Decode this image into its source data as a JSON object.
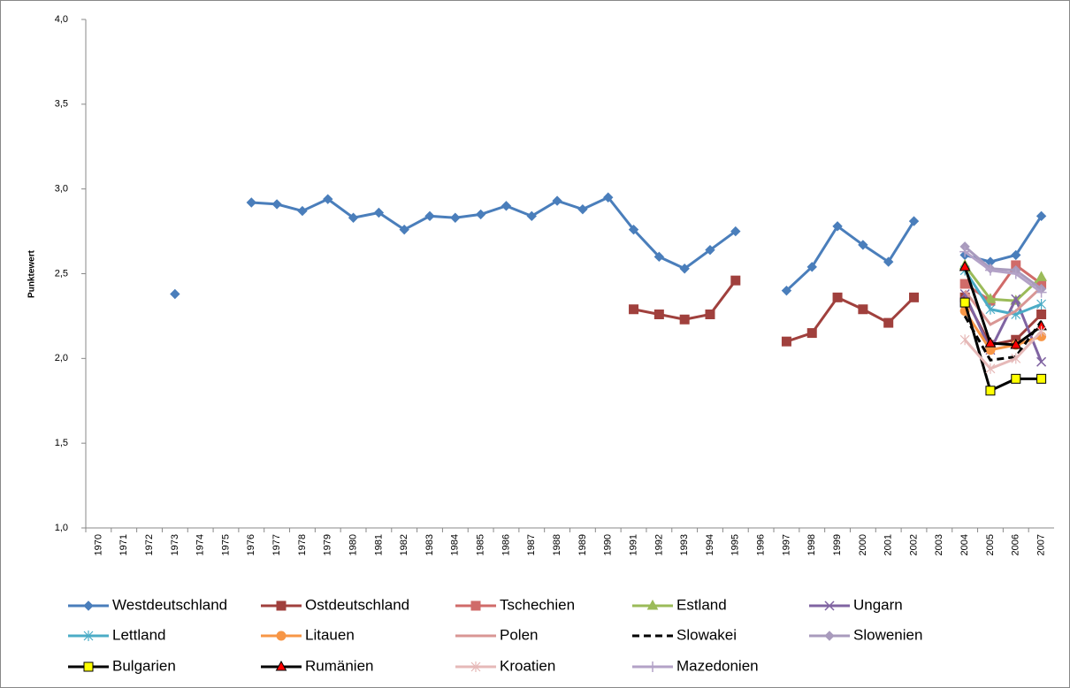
{
  "chart_data": {
    "type": "line",
    "y_label": "Punktewert",
    "categories": [
      "1970",
      "1971",
      "1972",
      "1973",
      "1974",
      "1975",
      "1976",
      "1977",
      "1978",
      "1979",
      "1980",
      "1981",
      "1982",
      "1983",
      "1984",
      "1985",
      "1986",
      "1987",
      "1988",
      "1989",
      "1990",
      "1991",
      "1992",
      "1993",
      "1994",
      "1995",
      "1996",
      "1997",
      "1998",
      "1999",
      "2000",
      "2001",
      "2002",
      "2003",
      "2004",
      "2005",
      "2006",
      "2007"
    ],
    "ylim": [
      1,
      4
    ],
    "yticks": [
      {
        "value": 1,
        "label": "1,0"
      },
      {
        "value": 1.5,
        "label": "1,5"
      },
      {
        "value": 2,
        "label": "2,0"
      },
      {
        "value": 2.5,
        "label": "2,5"
      },
      {
        "value": 3,
        "label": "3,0"
      },
      {
        "value": 3.5,
        "label": "3,5"
      },
      {
        "value": 4,
        "label": "4,0"
      }
    ],
    "grid": false,
    "legend": "bottom",
    "series": [
      {
        "name": "Westdeutschland",
        "color": "#4a7ebb",
        "marker": "diamond",
        "marker_fill": "#4a7ebb",
        "values": [
          null,
          null,
          null,
          2.38,
          null,
          null,
          2.92,
          2.91,
          2.87,
          2.94,
          2.83,
          2.86,
          2.76,
          2.84,
          2.83,
          2.85,
          2.9,
          2.84,
          2.93,
          2.88,
          2.95,
          2.76,
          2.6,
          2.53,
          2.64,
          2.75,
          null,
          2.4,
          2.54,
          2.78,
          2.67,
          2.57,
          2.81,
          null,
          2.61,
          2.57,
          2.61,
          2.84
        ]
      },
      {
        "name": "Ostdeutschland",
        "color": "#a0403d",
        "marker": "square",
        "marker_fill": "#a0403d",
        "values": [
          null,
          null,
          null,
          null,
          null,
          null,
          null,
          null,
          null,
          null,
          null,
          null,
          null,
          null,
          null,
          null,
          null,
          null,
          null,
          null,
          null,
          2.29,
          2.26,
          2.23,
          2.26,
          2.46,
          null,
          2.1,
          2.15,
          2.36,
          2.29,
          2.21,
          2.36,
          null,
          2.36,
          2.08,
          2.11,
          2.26
        ]
      },
      {
        "name": "Tschechien",
        "color": "#d06b69",
        "marker": "square",
        "marker_fill": "#d06b69",
        "values": [
          null,
          null,
          null,
          null,
          null,
          null,
          null,
          null,
          null,
          null,
          null,
          null,
          null,
          null,
          null,
          null,
          null,
          null,
          null,
          null,
          null,
          null,
          null,
          null,
          null,
          null,
          null,
          null,
          null,
          null,
          null,
          null,
          null,
          null,
          2.44,
          2.34,
          2.55,
          2.44
        ]
      },
      {
        "name": "Estland",
        "color": "#9bbb59",
        "marker": "triangle",
        "marker_fill": "#9bbb59",
        "values": [
          null,
          null,
          null,
          null,
          null,
          null,
          null,
          null,
          null,
          null,
          null,
          null,
          null,
          null,
          null,
          null,
          null,
          null,
          null,
          null,
          null,
          null,
          null,
          null,
          null,
          null,
          null,
          null,
          null,
          null,
          null,
          null,
          null,
          null,
          2.55,
          2.35,
          2.34,
          2.48
        ]
      },
      {
        "name": "Ungarn",
        "color": "#8064a2",
        "marker": "x",
        "marker_fill": "#8064a2",
        "values": [
          null,
          null,
          null,
          null,
          null,
          null,
          null,
          null,
          null,
          null,
          null,
          null,
          null,
          null,
          null,
          null,
          null,
          null,
          null,
          null,
          null,
          null,
          null,
          null,
          null,
          null,
          null,
          null,
          null,
          null,
          null,
          null,
          null,
          null,
          2.38,
          2.05,
          2.35,
          1.98
        ]
      },
      {
        "name": "Lettland",
        "color": "#4bacc6",
        "marker": "asterisk",
        "marker_fill": "#4bacc6",
        "values": [
          null,
          null,
          null,
          null,
          null,
          null,
          null,
          null,
          null,
          null,
          null,
          null,
          null,
          null,
          null,
          null,
          null,
          null,
          null,
          null,
          null,
          null,
          null,
          null,
          null,
          null,
          null,
          null,
          null,
          null,
          null,
          null,
          null,
          null,
          2.52,
          2.29,
          2.26,
          2.32
        ]
      },
      {
        "name": "Litauen",
        "color": "#f79646",
        "marker": "circle",
        "marker_fill": "#f79646",
        "values": [
          null,
          null,
          null,
          null,
          null,
          null,
          null,
          null,
          null,
          null,
          null,
          null,
          null,
          null,
          null,
          null,
          null,
          null,
          null,
          null,
          null,
          null,
          null,
          null,
          null,
          null,
          null,
          null,
          null,
          null,
          null,
          null,
          null,
          null,
          2.28,
          2.05,
          2.08,
          2.13
        ]
      },
      {
        "name": "Polen",
        "color": "#d99694",
        "marker": "none",
        "marker_fill": "#d99694",
        "values": [
          null,
          null,
          null,
          null,
          null,
          null,
          null,
          null,
          null,
          null,
          null,
          null,
          null,
          null,
          null,
          null,
          null,
          null,
          null,
          null,
          null,
          null,
          null,
          null,
          null,
          null,
          null,
          null,
          null,
          null,
          null,
          null,
          null,
          null,
          2.4,
          2.2,
          2.28,
          2.42
        ]
      },
      {
        "name": "Slowakei",
        "color": "#000000",
        "marker": "none",
        "marker_fill": "#000000",
        "dash": true,
        "values": [
          null,
          null,
          null,
          null,
          null,
          null,
          null,
          null,
          null,
          null,
          null,
          null,
          null,
          null,
          null,
          null,
          null,
          null,
          null,
          null,
          null,
          null,
          null,
          null,
          null,
          null,
          null,
          null,
          null,
          null,
          null,
          null,
          null,
          null,
          2.25,
          1.99,
          2.01,
          2.22
        ]
      },
      {
        "name": "Slowenien",
        "color": "#a99bbd",
        "marker": "diamond",
        "marker_fill": "#a99bbd",
        "values": [
          null,
          null,
          null,
          null,
          null,
          null,
          null,
          null,
          null,
          null,
          null,
          null,
          null,
          null,
          null,
          null,
          null,
          null,
          null,
          null,
          null,
          null,
          null,
          null,
          null,
          null,
          null,
          null,
          null,
          null,
          null,
          null,
          null,
          null,
          2.66,
          2.53,
          2.52,
          2.41
        ]
      },
      {
        "name": "Bulgarien",
        "color": "#000000",
        "marker": "square",
        "marker_fill": "#ffff00",
        "values": [
          null,
          null,
          null,
          null,
          null,
          null,
          null,
          null,
          null,
          null,
          null,
          null,
          null,
          null,
          null,
          null,
          null,
          null,
          null,
          null,
          null,
          null,
          null,
          null,
          null,
          null,
          null,
          null,
          null,
          null,
          null,
          null,
          null,
          null,
          2.33,
          1.81,
          1.88,
          1.88
        ]
      },
      {
        "name": "Rumänien",
        "color": "#000000",
        "marker": "triangle",
        "marker_fill": "#ff0000",
        "values": [
          null,
          null,
          null,
          null,
          null,
          null,
          null,
          null,
          null,
          null,
          null,
          null,
          null,
          null,
          null,
          null,
          null,
          null,
          null,
          null,
          null,
          null,
          null,
          null,
          null,
          null,
          null,
          null,
          null,
          null,
          null,
          null,
          null,
          null,
          2.54,
          2.09,
          2.08,
          2.19
        ]
      },
      {
        "name": "Kroatien",
        "color": "#e6b9b8",
        "marker": "asterisk",
        "marker_fill": "#e6b9b8",
        "values": [
          null,
          null,
          null,
          null,
          null,
          null,
          null,
          null,
          null,
          null,
          null,
          null,
          null,
          null,
          null,
          null,
          null,
          null,
          null,
          null,
          null,
          null,
          null,
          null,
          null,
          null,
          null,
          null,
          null,
          null,
          null,
          null,
          null,
          null,
          2.11,
          1.94,
          2.0,
          2.16
        ]
      },
      {
        "name": "Mazedonien",
        "color": "#b3a2c7",
        "marker": "plus",
        "marker_fill": "#b3a2c7",
        "values": [
          null,
          null,
          null,
          null,
          null,
          null,
          null,
          null,
          null,
          null,
          null,
          null,
          null,
          null,
          null,
          null,
          null,
          null,
          null,
          null,
          null,
          null,
          null,
          null,
          null,
          null,
          null,
          null,
          null,
          null,
          null,
          null,
          null,
          null,
          2.63,
          2.52,
          2.5,
          2.39
        ]
      }
    ]
  }
}
